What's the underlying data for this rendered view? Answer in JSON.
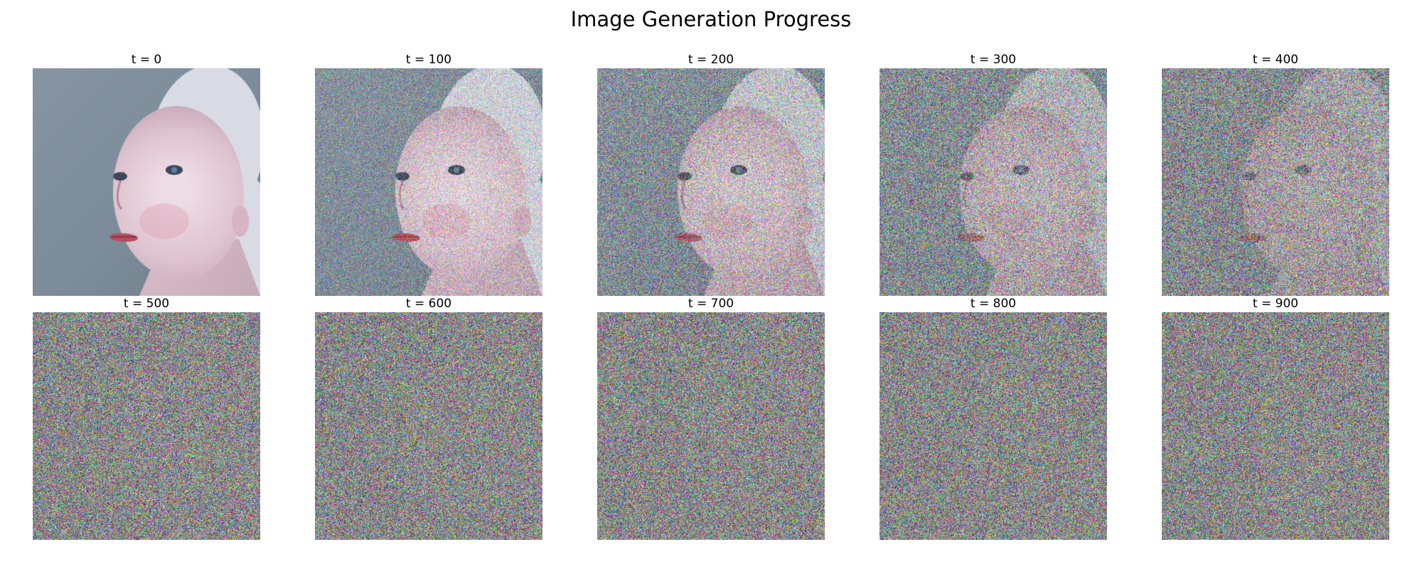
{
  "title": "Image Generation Progress",
  "panels": [
    {
      "label": "t = 0",
      "noise_level": 0.0
    },
    {
      "label": "t = 100",
      "noise_level": 0.55
    },
    {
      "label": "t = 200",
      "noise_level": 0.75
    },
    {
      "label": "t = 300",
      "noise_level": 0.88
    },
    {
      "label": "t = 400",
      "noise_level": 0.95
    },
    {
      "label": "t = 500",
      "noise_level": 1.0
    },
    {
      "label": "t = 600",
      "noise_level": 1.0
    },
    {
      "label": "t = 700",
      "noise_level": 1.0
    },
    {
      "label": "t = 800",
      "noise_level": 1.0
    },
    {
      "label": "t = 900",
      "noise_level": 1.0
    }
  ],
  "colors": {
    "background_wall": "#7c8b99",
    "skin": "#ddc3cf",
    "hair": "#d9dbe4",
    "noise_base": "#8a8686"
  }
}
